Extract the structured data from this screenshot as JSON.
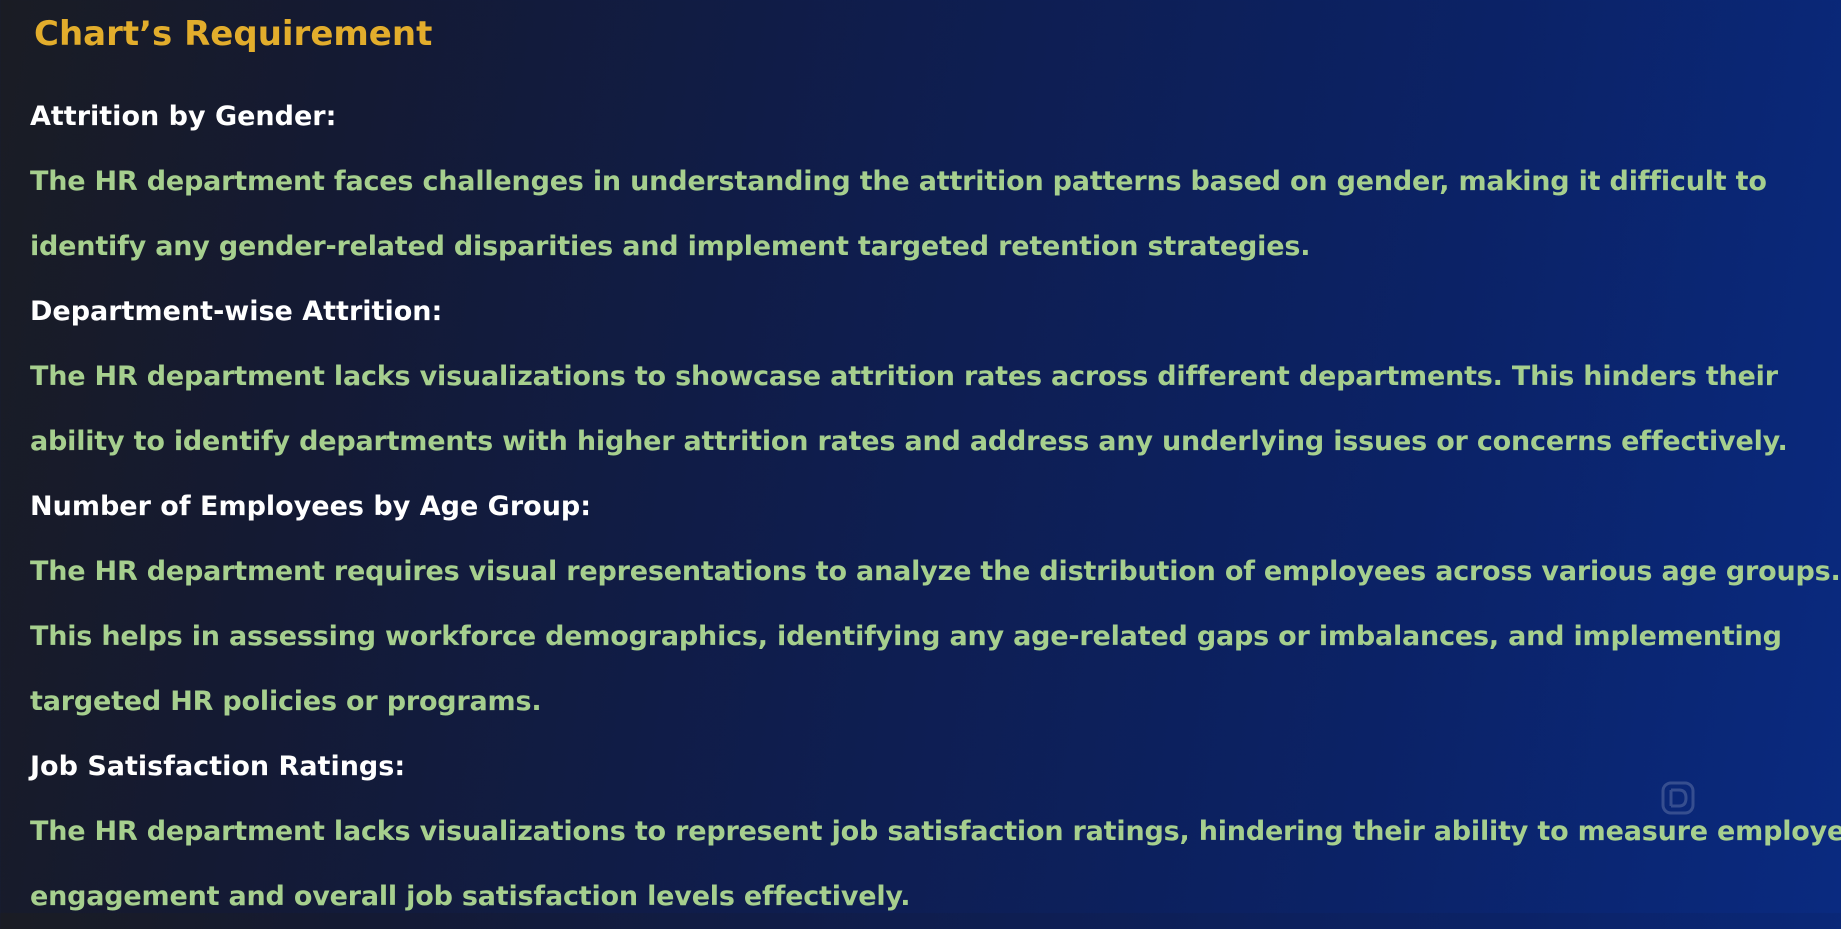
{
  "title": "Chart’s Requirement",
  "sections": [
    {
      "heading": "Attrition by Gender:",
      "lines": [
        "The HR department faces challenges in understanding the attrition patterns based on gender, making it difficult to",
        "identify any gender-related disparities and implement targeted retention strategies."
      ]
    },
    {
      "heading": "Department-wise Attrition:",
      "lines": [
        "The HR department lacks visualizations to showcase attrition rates across different departments. This hinders their",
        "ability to identify departments with higher attrition rates and address any underlying issues or concerns effectively."
      ]
    },
    {
      "heading": "Number of Employees by Age Group:",
      "lines": [
        "The HR department requires visual representations to analyze the distribution of employees across various age groups.",
        "This helps in assessing workforce demographics, identifying any age-related gaps or imbalances, and implementing",
        "targeted HR policies or programs."
      ]
    },
    {
      "heading": "Job Satisfaction Ratings:",
      "lines": [
        "The HR department lacks visualizations to represent job satisfaction ratings, hindering their ability to measure employee",
        "engagement and overall job satisfaction levels effectively."
      ]
    }
  ],
  "colors": {
    "title": "#e2ad2c",
    "heading": "#ffffff",
    "body": "#a6cf8e"
  },
  "icons": {
    "watermark": "channel-logo-watermark"
  }
}
